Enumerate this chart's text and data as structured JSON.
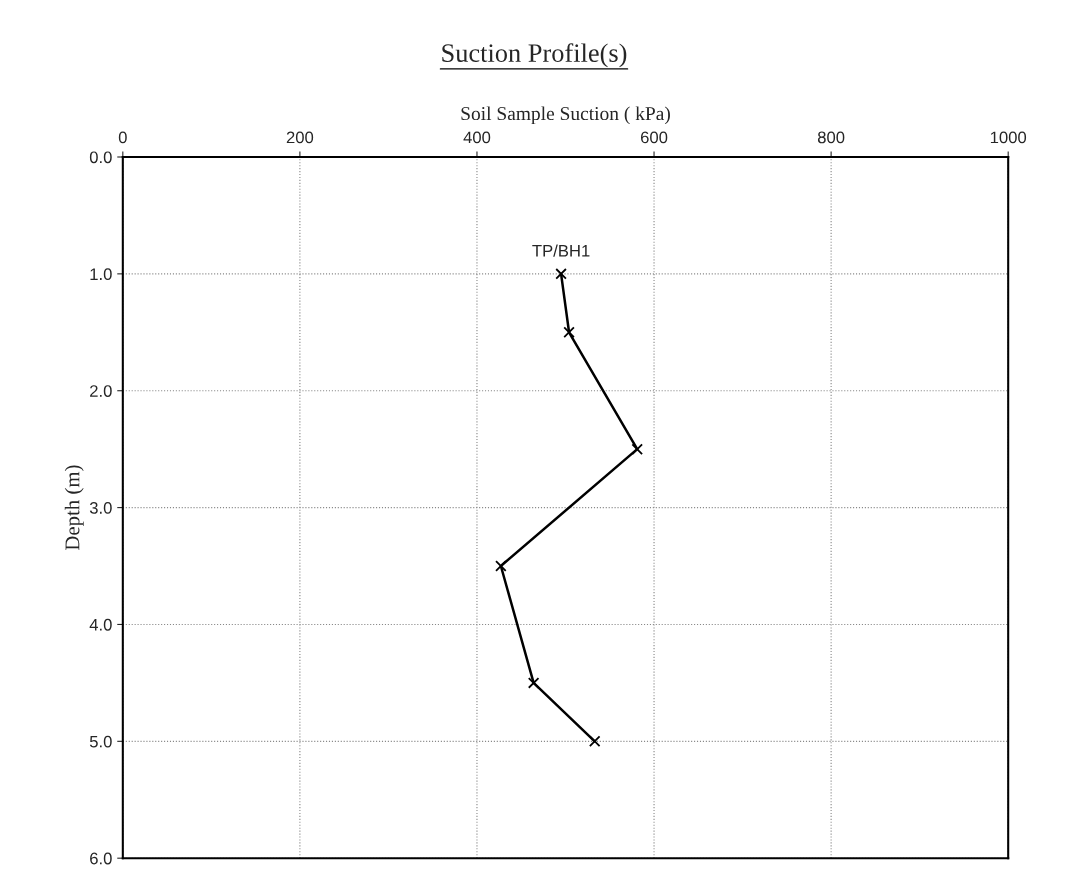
{
  "chart_data": {
    "type": "line",
    "title": "Suction Profile(s)",
    "xlabel": "Soil Sample Suction ( kPa)",
    "ylabel": "Depth (m)",
    "series": [
      {
        "name": "TP/BH1",
        "color": "#000000",
        "x": [
          495,
          504,
          581,
          427,
          464,
          533
        ],
        "values": [
          1.0,
          1.5,
          2.5,
          3.5,
          4.5,
          5.0
        ]
      }
    ],
    "xlim": [
      0,
      1000
    ],
    "xticks": [
      0,
      200,
      400,
      600,
      800,
      1000
    ],
    "ylim": [
      6,
      0
    ],
    "yticks": [
      {
        "value": 0,
        "label": "0.0"
      },
      {
        "value": 1,
        "label": "1.0"
      },
      {
        "value": 2,
        "label": "2.0"
      },
      {
        "value": 3,
        "label": "3.0"
      },
      {
        "value": 4,
        "label": "4.0"
      },
      {
        "value": 5,
        "label": "5.0"
      },
      {
        "value": 6,
        "label": "6.0"
      }
    ],
    "grid": true,
    "marker": "cross",
    "line_style": "solid",
    "legend": false
  }
}
